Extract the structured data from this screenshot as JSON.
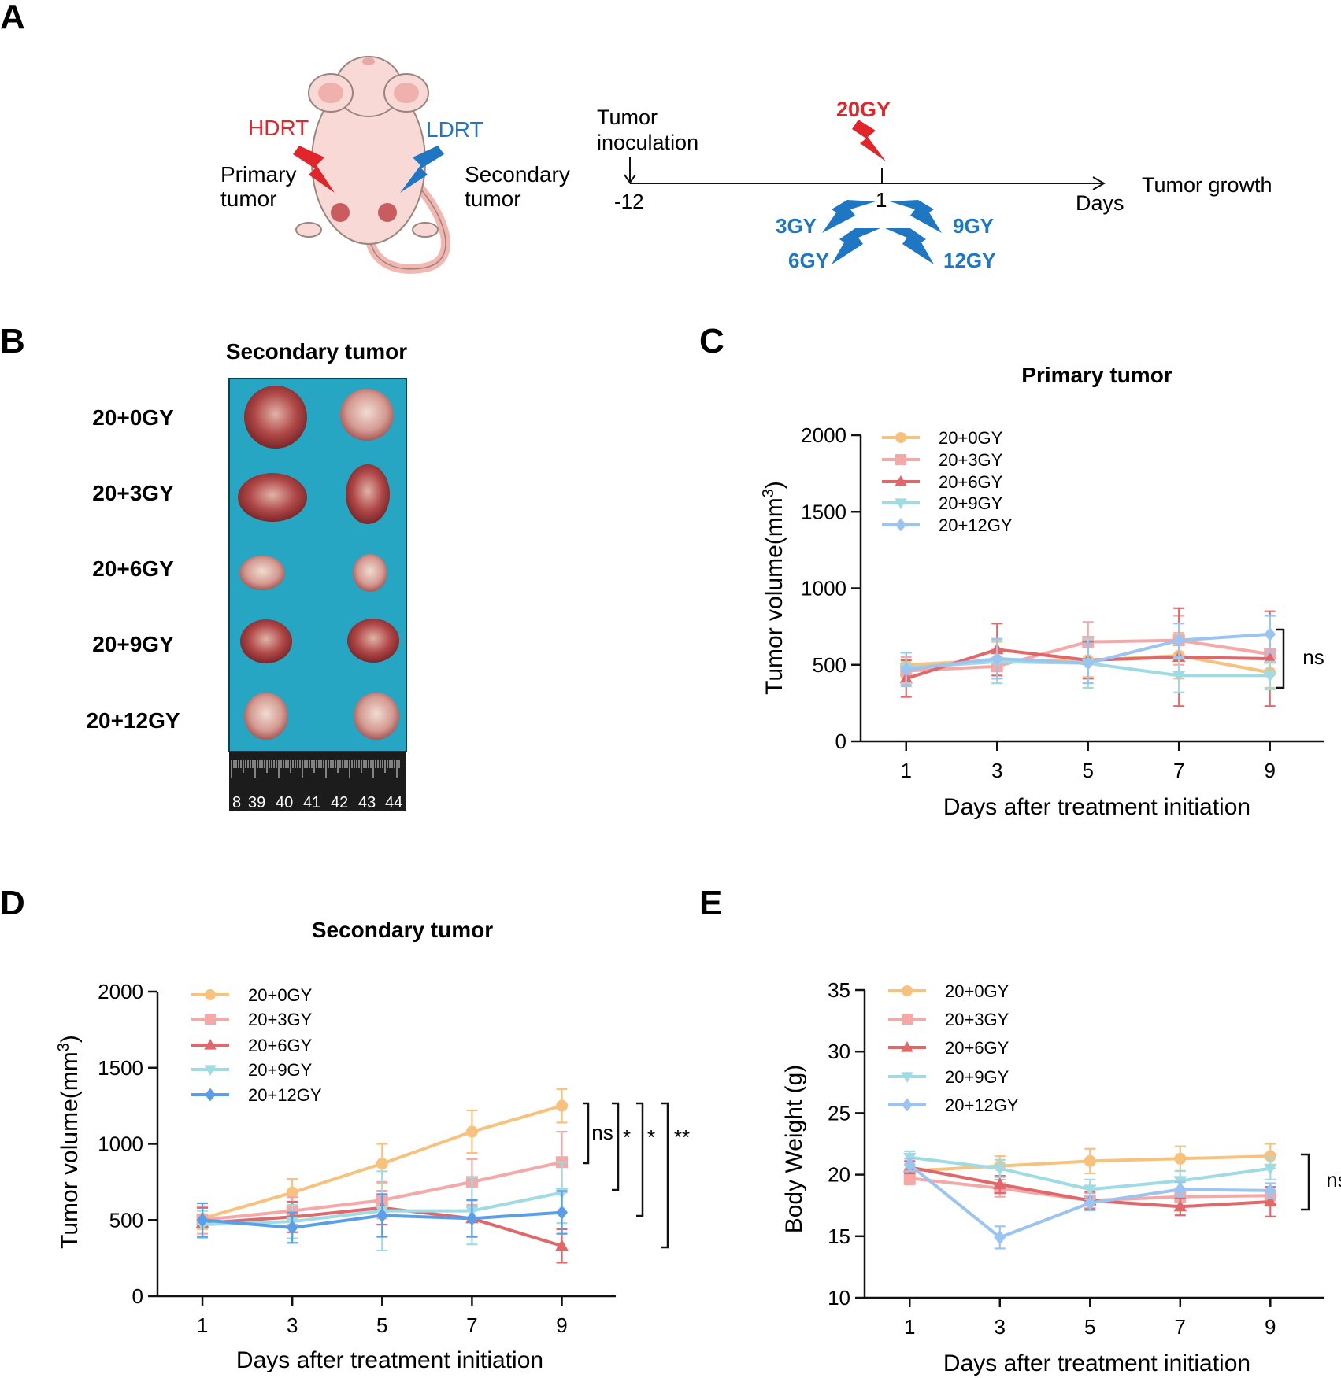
{
  "figure_labels": {
    "a": "A",
    "b": "B",
    "c": "C",
    "d": "D",
    "e": "E"
  },
  "colors": {
    "20+0GY": "#f7c27e",
    "20+3GY": "#f5a8a8",
    "20+6GY": "#e0686b",
    "20+9GY": "#9fdbe3",
    "20+12GY": "#9cc4f0",
    "d_20+12GY": "#5a9ee8",
    "hdrt": "#e0262b",
    "ldrt": "#1f77c4",
    "tray": "#27a6c4"
  },
  "panel_a": {
    "hdrt": "HDRT",
    "ldrt": "LDRT",
    "primary": "Primary",
    "primary2": "tumor",
    "secondary": "Secondary",
    "secondary2": "tumor",
    "inoc1": "Tumor",
    "inoc2": "inoculation",
    "t_start": "-12",
    "t_one": "1",
    "days": "Days",
    "growth": "Tumor growth",
    "dose_high": "20GY",
    "dose3": "3GY",
    "dose6": "6GY",
    "dose9": "9GY",
    "dose12": "12GY"
  },
  "panel_b": {
    "title": "Secondary tumor",
    "rows": [
      "20+0GY",
      "20+3GY",
      "20+6GY",
      "20+9GY",
      "20+12GY"
    ],
    "ruler": [
      "8",
      "39",
      "40",
      "41",
      "42",
      "43",
      "44"
    ]
  },
  "chart_data": [
    {
      "id": "C",
      "type": "line",
      "title": "Primary tumor",
      "xlabel": "Days after treatment initiation",
      "ylabel": "Tumor volume(mm",
      "ylabel_sup": "3",
      "ylabel_end": ")",
      "x": [
        1,
        3,
        5,
        7,
        9
      ],
      "xlim": [
        0,
        10.2
      ],
      "ylim": [
        0,
        2000
      ],
      "yticks": [
        0,
        500,
        1000,
        1500,
        2000
      ],
      "series": [
        {
          "name": "20+0GY",
          "values": [
            500,
            530,
            530,
            560,
            450
          ],
          "err": [
            80,
            120,
            110,
            150,
            100
          ]
        },
        {
          "name": "20+3GY",
          "values": [
            460,
            490,
            650,
            660,
            570
          ],
          "err": [
            90,
            110,
            130,
            160,
            130
          ]
        },
        {
          "name": "20+6GY",
          "values": [
            410,
            600,
            530,
            550,
            540
          ],
          "err": [
            120,
            170,
            120,
            320,
            310
          ]
        },
        {
          "name": "20+9GY",
          "values": [
            480,
            520,
            510,
            430,
            430
          ],
          "err": [
            100,
            140,
            160,
            110,
            90
          ]
        },
        {
          "name": "20+12GY",
          "values": [
            470,
            540,
            510,
            660,
            700
          ],
          "err": [
            110,
            130,
            130,
            110,
            120
          ]
        }
      ],
      "significance": [
        {
          "label": "ns"
        }
      ]
    },
    {
      "id": "D",
      "type": "line",
      "title": "Secondary tumor",
      "xlabel": "Days after treatment initiation",
      "ylabel": "Tumor volume(mm",
      "ylabel_sup": "3",
      "ylabel_end": ")",
      "x": [
        1,
        3,
        5,
        7,
        9
      ],
      "xlim": [
        0,
        10.2
      ],
      "ylim": [
        0,
        2000
      ],
      "yticks": [
        0,
        500,
        1000,
        1500,
        2000
      ],
      "series": [
        {
          "name": "20+0GY",
          "values": [
            510,
            680,
            870,
            1080,
            1250
          ],
          "err": [
            70,
            90,
            130,
            140,
            110
          ]
        },
        {
          "name": "20+3GY",
          "values": [
            500,
            560,
            630,
            750,
            880
          ],
          "err": [
            90,
            90,
            120,
            150,
            200
          ]
        },
        {
          "name": "20+6GY",
          "values": [
            480,
            520,
            580,
            510,
            330
          ],
          "err": [
            100,
            100,
            110,
            120,
            110
          ]
        },
        {
          "name": "20+9GY",
          "values": [
            470,
            490,
            560,
            560,
            680
          ],
          "err": [
            90,
            110,
            260,
            220,
            200
          ]
        },
        {
          "name": "20+12GY",
          "values": [
            500,
            450,
            530,
            510,
            550
          ],
          "err": [
            110,
            100,
            140,
            120,
            140
          ]
        }
      ],
      "significance": [
        {
          "label": "ns"
        },
        {
          "label": "*"
        },
        {
          "label": "*"
        },
        {
          "label": "**"
        }
      ]
    },
    {
      "id": "E",
      "type": "line",
      "title": "",
      "xlabel": "Days after treatment initiation",
      "ylabel": "Body Weight (g)",
      "ylabel_sup": "",
      "ylabel_end": "",
      "x": [
        1,
        3,
        5,
        7,
        9
      ],
      "xlim": [
        0,
        10.2
      ],
      "ylim": [
        10,
        35
      ],
      "yticks": [
        10,
        15,
        20,
        25,
        30,
        35
      ],
      "series": [
        {
          "name": "20+0GY",
          "values": [
            20.3,
            20.7,
            21.1,
            21.3,
            21.5
          ],
          "err": [
            0.8,
            0.8,
            1.0,
            1.0,
            1.0
          ]
        },
        {
          "name": "20+3GY",
          "values": [
            19.7,
            18.9,
            17.9,
            18.2,
            18.3
          ],
          "err": [
            0.5,
            0.7,
            0.6,
            0.7,
            0.7
          ]
        },
        {
          "name": "20+6GY",
          "values": [
            20.6,
            19.2,
            17.9,
            17.4,
            17.8
          ],
          "err": [
            0.5,
            0.7,
            0.7,
            0.7,
            1.2
          ]
        },
        {
          "name": "20+9GY",
          "values": [
            21.4,
            20.5,
            18.8,
            19.5,
            20.5
          ],
          "err": [
            0.5,
            0.7,
            0.8,
            0.8,
            0.9
          ]
        },
        {
          "name": "20+12GY",
          "values": [
            20.8,
            14.9,
            17.7,
            18.8,
            18.7
          ],
          "err": [
            0.5,
            0.9,
            0.6,
            0.6,
            0.6
          ]
        }
      ],
      "significance": [
        {
          "label": "ns"
        }
      ]
    }
  ]
}
